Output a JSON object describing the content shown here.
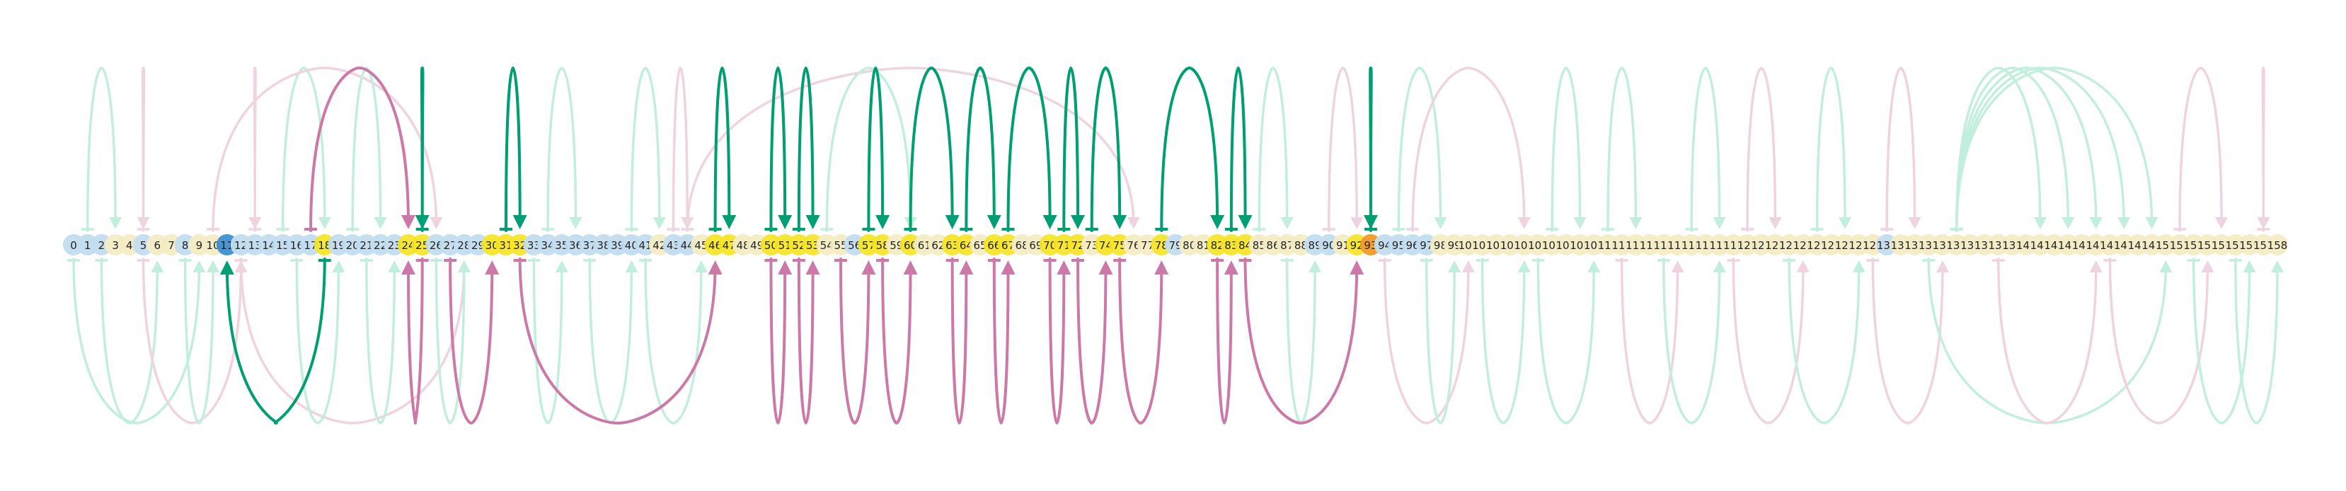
{
  "colors": {
    "node_default": "#c3ddef",
    "node_pale": "#f4ecc4",
    "node_highlight": "#f5e52a",
    "node_blue_dark": "#3d8fd0",
    "node_orange": "#f29a28",
    "arc_green_strong": "#009e73",
    "arc_green_faint": "#c2eede",
    "arc_pink_strong": "#cc79a7",
    "arc_pink_faint": "#f0d3e1"
  },
  "token_count": 159,
  "nodes_highlight": [
    18,
    24,
    25,
    30,
    31,
    32,
    46,
    47,
    50,
    51,
    52,
    53,
    57,
    58,
    60,
    63,
    64,
    66,
    67,
    70,
    71,
    72,
    74,
    75,
    78,
    82,
    83,
    84,
    92,
    93
  ],
  "nodes_pale": [
    3,
    4,
    6,
    7,
    9,
    10,
    42,
    45,
    48,
    49,
    54,
    55,
    59,
    61,
    62,
    65,
    68,
    69,
    73,
    76,
    77,
    80,
    81,
    85,
    86,
    87,
    88,
    91,
    98,
    99,
    100,
    101,
    102,
    103,
    104,
    105,
    106,
    107,
    108,
    109,
    110,
    111,
    112,
    113,
    114,
    115,
    116,
    117,
    118,
    119,
    120,
    121,
    122,
    123,
    124,
    125,
    126,
    127,
    128,
    129,
    131,
    132,
    133,
    134,
    135,
    136,
    137,
    138,
    139,
    140,
    141,
    142,
    143,
    144,
    145,
    146,
    147,
    148,
    149,
    150,
    151,
    152,
    153,
    154,
    155,
    156,
    157,
    158
  ],
  "nodes_blue_dark": [
    11
  ],
  "nodes_orange": [
    93
  ],
  "arcs_strong": [
    {
      "from": 18,
      "to": 11,
      "side": "below",
      "color": "green"
    },
    {
      "from": 25,
      "to": 25,
      "side": "above",
      "color": "green"
    },
    {
      "from": 17,
      "to": 24,
      "side": "above",
      "color": "pink"
    },
    {
      "from": 31,
      "to": 32,
      "side": "above",
      "color": "green"
    },
    {
      "from": 27,
      "to": 30,
      "side": "below",
      "color": "pink"
    },
    {
      "from": 25,
      "to": 24,
      "side": "below",
      "color": "pink"
    },
    {
      "from": 32,
      "to": 46,
      "side": "below",
      "color": "pink"
    },
    {
      "from": 46,
      "to": 47,
      "side": "above",
      "color": "green"
    },
    {
      "from": 50,
      "to": 51,
      "side": "above",
      "color": "green"
    },
    {
      "from": 52,
      "to": 53,
      "side": "above",
      "color": "green"
    },
    {
      "from": 50,
      "to": 51,
      "side": "below",
      "color": "pink"
    },
    {
      "from": 52,
      "to": 53,
      "side": "below",
      "color": "pink"
    },
    {
      "from": 57,
      "to": 58,
      "side": "above",
      "color": "green"
    },
    {
      "from": 55,
      "to": 57,
      "side": "below",
      "color": "pink"
    },
    {
      "from": 58,
      "to": 60,
      "side": "below",
      "color": "pink"
    },
    {
      "from": 60,
      "to": 63,
      "side": "above",
      "color": "green"
    },
    {
      "from": 64,
      "to": 66,
      "side": "above",
      "color": "green"
    },
    {
      "from": 63,
      "to": 64,
      "side": "below",
      "color": "pink"
    },
    {
      "from": 66,
      "to": 67,
      "side": "below",
      "color": "pink"
    },
    {
      "from": 67,
      "to": 70,
      "side": "above",
      "color": "green"
    },
    {
      "from": 71,
      "to": 72,
      "side": "above",
      "color": "green"
    },
    {
      "from": 73,
      "to": 75,
      "side": "above",
      "color": "green"
    },
    {
      "from": 70,
      "to": 71,
      "side": "below",
      "color": "pink"
    },
    {
      "from": 72,
      "to": 74,
      "side": "below",
      "color": "pink"
    },
    {
      "from": 75,
      "to": 78,
      "side": "below",
      "color": "pink"
    },
    {
      "from": 78,
      "to": 82,
      "side": "above",
      "color": "green"
    },
    {
      "from": 83,
      "to": 84,
      "side": "above",
      "color": "green"
    },
    {
      "from": 82,
      "to": 83,
      "side": "below",
      "color": "pink"
    },
    {
      "from": 84,
      "to": 92,
      "side": "below",
      "color": "pink"
    },
    {
      "from": 93,
      "to": 93,
      "side": "above",
      "color": "green"
    }
  ],
  "arcs_faint": [
    {
      "from": 1,
      "to": 3,
      "side": "above",
      "color": "green"
    },
    {
      "from": 5,
      "to": 5,
      "side": "above",
      "color": "pink"
    },
    {
      "from": 13,
      "to": 13,
      "side": "above",
      "color": "pink"
    },
    {
      "from": 15,
      "to": 18,
      "side": "above",
      "color": "green"
    },
    {
      "from": 10,
      "to": 26,
      "side": "above",
      "color": "pink"
    },
    {
      "from": 20,
      "to": 22,
      "side": "above",
      "color": "green"
    },
    {
      "from": 34,
      "to": 36,
      "side": "above",
      "color": "green"
    },
    {
      "from": 40,
      "to": 42,
      "side": "above",
      "color": "green"
    },
    {
      "from": 43,
      "to": 44,
      "side": "above",
      "color": "pink"
    },
    {
      "from": 44,
      "to": 76,
      "side": "above",
      "color": "pink"
    },
    {
      "from": 54,
      "to": 60,
      "side": "above",
      "color": "green"
    },
    {
      "from": 85,
      "to": 87,
      "side": "above",
      "color": "green"
    },
    {
      "from": 90,
      "to": 92,
      "side": "above",
      "color": "pink"
    },
    {
      "from": 95,
      "to": 98,
      "side": "above",
      "color": "green"
    },
    {
      "from": 96,
      "to": 104,
      "side": "above",
      "color": "pink"
    },
    {
      "from": 106,
      "to": 108,
      "side": "above",
      "color": "green"
    },
    {
      "from": 110,
      "to": 112,
      "side": "above",
      "color": "green"
    },
    {
      "from": 116,
      "to": 118,
      "side": "above",
      "color": "green"
    },
    {
      "from": 120,
      "to": 122,
      "side": "above",
      "color": "pink"
    },
    {
      "from": 125,
      "to": 127,
      "side": "above",
      "color": "green"
    },
    {
      "from": 130,
      "to": 132,
      "side": "above",
      "color": "pink"
    },
    {
      "from": 135,
      "to": 141,
      "side": "above",
      "color": "green"
    },
    {
      "from": 135,
      "to": 143,
      "side": "above",
      "color": "green"
    },
    {
      "from": 135,
      "to": 145,
      "side": "above",
      "color": "green"
    },
    {
      "from": 135,
      "to": 147,
      "side": "above",
      "color": "green"
    },
    {
      "from": 135,
      "to": 149,
      "side": "above",
      "color": "green"
    },
    {
      "from": 151,
      "to": 154,
      "side": "above",
      "color": "pink"
    },
    {
      "from": 157,
      "to": 157,
      "side": "above",
      "color": "pink"
    },
    {
      "from": 0,
      "to": 9,
      "side": "below",
      "color": "green"
    },
    {
      "from": 2,
      "to": 6,
      "side": "below",
      "color": "green"
    },
    {
      "from": 5,
      "to": 12,
      "side": "below",
      "color": "pink"
    },
    {
      "from": 8,
      "to": 10,
      "side": "below",
      "color": "green"
    },
    {
      "from": 12,
      "to": 28,
      "side": "below",
      "color": "pink"
    },
    {
      "from": 16,
      "to": 19,
      "side": "below",
      "color": "green"
    },
    {
      "from": 21,
      "to": 23,
      "side": "below",
      "color": "green"
    },
    {
      "from": 26,
      "to": 28,
      "side": "below",
      "color": "green"
    },
    {
      "from": 33,
      "to": 35,
      "side": "below",
      "color": "green"
    },
    {
      "from": 37,
      "to": 40,
      "side": "below",
      "color": "green"
    },
    {
      "from": 41,
      "to": 45,
      "side": "below",
      "color": "green"
    },
    {
      "from": 87,
      "to": 89,
      "side": "below",
      "color": "green"
    },
    {
      "from": 94,
      "to": 100,
      "side": "below",
      "color": "pink"
    },
    {
      "from": 97,
      "to": 99,
      "side": "below",
      "color": "green"
    },
    {
      "from": 101,
      "to": 104,
      "side": "below",
      "color": "green"
    },
    {
      "from": 105,
      "to": 109,
      "side": "below",
      "color": "green"
    },
    {
      "from": 111,
      "to": 115,
      "side": "below",
      "color": "pink"
    },
    {
      "from": 114,
      "to": 118,
      "side": "below",
      "color": "green"
    },
    {
      "from": 119,
      "to": 124,
      "side": "below",
      "color": "pink"
    },
    {
      "from": 123,
      "to": 128,
      "side": "below",
      "color": "green"
    },
    {
      "from": 129,
      "to": 134,
      "side": "below",
      "color": "pink"
    },
    {
      "from": 133,
      "to": 150,
      "side": "below",
      "color": "green"
    },
    {
      "from": 138,
      "to": 145,
      "side": "below",
      "color": "pink"
    },
    {
      "from": 146,
      "to": 153,
      "side": "below",
      "color": "pink"
    },
    {
      "from": 152,
      "to": 156,
      "side": "below",
      "color": "green"
    },
    {
      "from": 155,
      "to": 158,
      "side": "below",
      "color": "green"
    }
  ]
}
